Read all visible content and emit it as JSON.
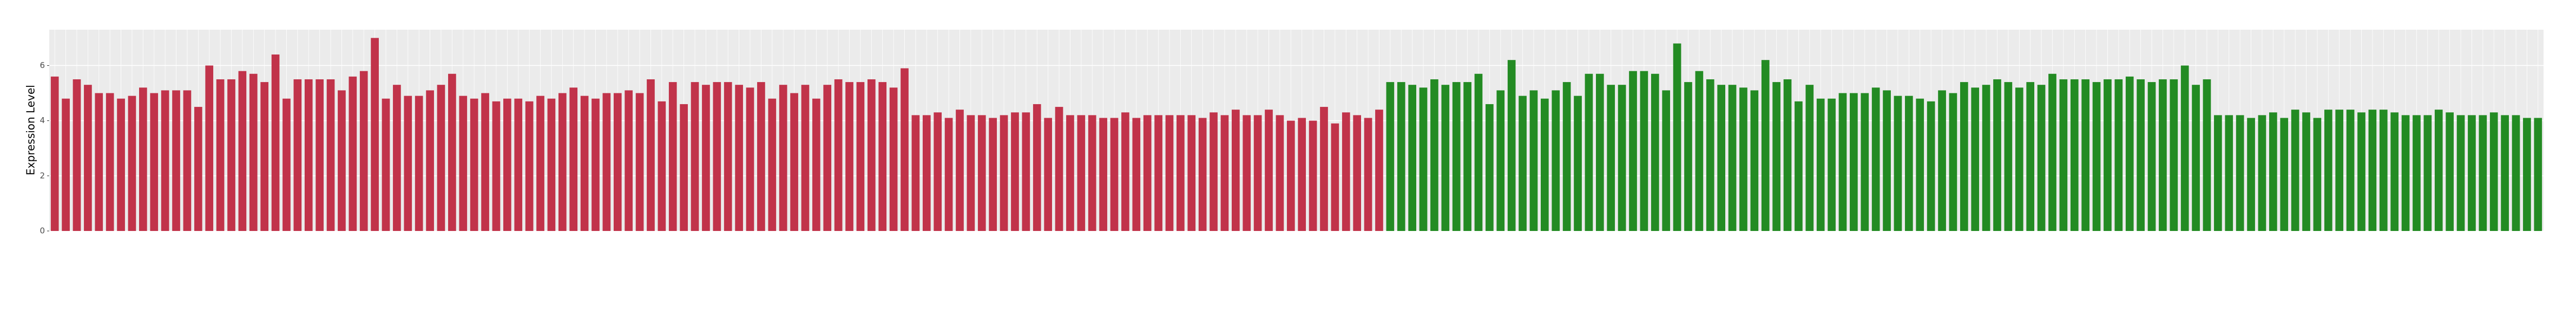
{
  "chart_data": {
    "type": "bar",
    "y_label": "Expression Level",
    "ylim": [
      0,
      7.3
    ],
    "yticks": [
      0,
      2,
      4,
      6
    ],
    "grid": true,
    "series": [
      {
        "color": "#c1334a",
        "values": [
          5.6,
          4.8,
          5.5,
          5.3,
          5.0,
          5.0,
          4.8,
          4.9,
          5.2,
          5.0,
          5.1,
          5.1,
          5.1,
          4.5,
          6.0,
          5.5,
          5.5,
          5.8,
          5.7,
          5.4,
          6.4,
          4.8,
          5.5,
          5.5,
          5.5,
          5.5,
          5.1,
          5.6,
          5.8,
          7.0,
          4.8,
          5.3,
          4.9,
          4.9,
          5.1,
          5.3,
          5.7,
          4.9,
          4.8,
          5.0,
          4.7,
          4.8,
          4.8,
          4.7,
          4.9,
          4.8,
          5.0,
          5.2,
          4.9,
          4.8,
          5.0,
          5.0,
          5.1,
          5.0,
          5.5,
          4.7,
          5.4,
          4.6,
          5.4,
          5.3,
          5.4,
          5.4,
          5.3,
          5.2,
          5.4,
          4.8,
          5.3,
          5.0,
          5.3,
          4.8,
          5.3,
          5.5,
          5.4,
          5.4,
          5.5,
          5.4,
          5.2,
          5.9,
          4.2,
          4.2,
          4.3,
          4.1,
          4.4,
          4.2,
          4.2,
          4.1,
          4.2,
          4.3,
          4.3,
          4.6,
          4.1,
          4.5,
          4.2,
          4.2,
          4.2,
          4.1,
          4.1,
          4.3,
          4.1,
          4.2,
          4.2,
          4.2,
          4.2,
          4.2,
          4.1,
          4.3,
          4.2,
          4.4,
          4.2,
          4.2,
          4.4,
          4.2,
          4.0,
          4.1,
          4.0,
          4.5,
          3.9,
          4.3,
          4.2,
          4.1,
          4.4
        ]
      },
      {
        "color": "#238b23",
        "values": [
          5.4,
          5.4,
          5.3,
          5.2,
          5.5,
          5.3,
          5.4,
          5.4,
          5.7,
          4.6,
          5.1,
          6.2,
          4.9,
          5.1,
          4.8,
          5.1,
          5.4,
          4.9,
          5.7,
          5.7,
          5.3,
          5.3,
          5.8,
          5.8,
          5.7,
          5.1,
          6.8,
          5.4,
          5.8,
          5.5,
          5.3,
          5.3,
          5.2,
          5.1,
          6.2,
          5.4,
          5.5,
          4.7,
          5.3,
          4.8,
          4.8,
          5.0,
          5.0,
          5.0,
          5.2,
          5.1,
          4.9,
          4.9,
          4.8,
          4.7,
          5.1,
          5.0,
          5.4,
          5.2,
          5.3,
          5.5,
          5.4,
          5.2,
          5.4,
          5.3,
          5.7,
          5.5,
          5.5,
          5.5,
          5.4,
          5.5,
          5.5,
          5.6,
          5.5,
          5.4,
          5.5,
          5.5,
          6.0,
          5.3,
          5.5,
          4.2,
          4.2,
          4.2,
          4.1,
          4.2,
          4.3,
          4.1,
          4.4,
          4.3,
          4.1,
          4.4,
          4.4,
          4.4,
          4.3,
          4.4,
          4.4,
          4.3,
          4.2,
          4.2,
          4.2,
          4.4,
          4.3,
          4.2,
          4.2,
          4.2,
          4.3,
          4.2,
          4.2,
          4.1,
          4.1
        ]
      }
    ]
  }
}
